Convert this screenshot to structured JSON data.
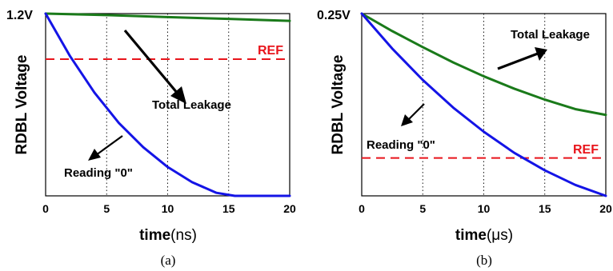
{
  "chart_data": [
    {
      "type": "line",
      "panel_label": "(a)",
      "xlabel_main": "time",
      "xlabel_unit": "(ns)",
      "ylabel": "RDBL Voltage",
      "y_top_label": "1.2V",
      "xlim": [
        0,
        20
      ],
      "ylim": [
        0,
        1.2
      ],
      "xticks": [
        "0",
        "5",
        "10",
        "15",
        "20"
      ],
      "grid_x": [
        5,
        10,
        15
      ],
      "ref_label": "REF",
      "ref_value": 0.9,
      "annotations": [
        "Total Leakage",
        "Reading \"0\""
      ],
      "colors": {
        "leakage": "#1a7a1a",
        "reading": "#1414e6",
        "ref": "#e8141b"
      },
      "series": [
        {
          "key": "leakage",
          "x": [
            0,
            5,
            10,
            15,
            20
          ],
          "y": [
            1.2,
            1.19,
            1.177,
            1.165,
            1.152
          ]
        },
        {
          "key": "reading",
          "x": [
            0,
            2,
            4,
            6,
            8,
            10,
            12,
            14,
            15.5,
            17,
            20
          ],
          "y": [
            1.2,
            0.92,
            0.68,
            0.48,
            0.32,
            0.19,
            0.09,
            0.02,
            0.0,
            0.0,
            0.0
          ]
        }
      ]
    },
    {
      "type": "line",
      "panel_label": "(b)",
      "xlabel_main": "time",
      "xlabel_unit": "(μs)",
      "ylabel": "RDBL Voltage",
      "y_top_label": "0.25V",
      "xlim": [
        0,
        20
      ],
      "ylim": [
        0,
        0.25
      ],
      "xticks": [
        "0",
        "5",
        "10",
        "15",
        "20"
      ],
      "grid_x": [
        5,
        10,
        15
      ],
      "ref_label": "REF",
      "ref_value": 0.052,
      "annotations": [
        "Total Leakage",
        "Reading \"0\""
      ],
      "colors": {
        "leakage": "#1a7a1a",
        "reading": "#1414e6",
        "ref": "#e8141b"
      },
      "series": [
        {
          "key": "leakage",
          "x": [
            0,
            2.5,
            5,
            7.5,
            10,
            12.5,
            15,
            17.5,
            20
          ],
          "y": [
            0.25,
            0.226,
            0.204,
            0.183,
            0.164,
            0.147,
            0.132,
            0.119,
            0.111
          ]
        },
        {
          "key": "reading",
          "x": [
            0,
            2.5,
            5,
            7.5,
            10,
            12.5,
            15,
            17.5,
            20
          ],
          "y": [
            0.25,
            0.202,
            0.159,
            0.121,
            0.088,
            0.059,
            0.035,
            0.015,
            0.0
          ]
        }
      ]
    }
  ]
}
